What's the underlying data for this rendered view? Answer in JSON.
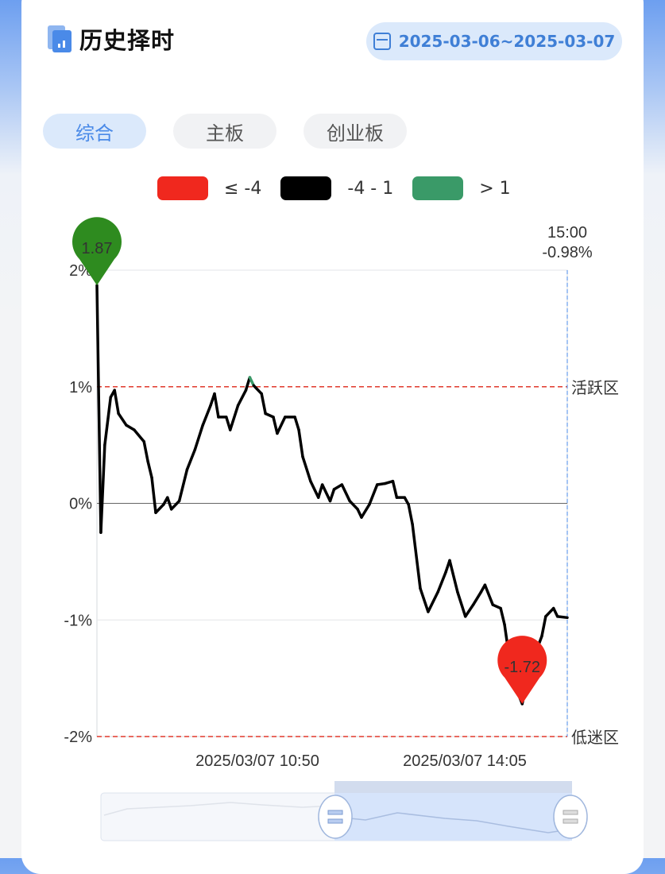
{
  "header": {
    "title": "历史择时",
    "date_range": "2025-03-06~2025-03-07"
  },
  "tabs": [
    {
      "label": "综合",
      "active": true
    },
    {
      "label": "主板",
      "active": false
    },
    {
      "label": "创业板",
      "active": false
    }
  ],
  "legend": [
    {
      "label": "≤ -4",
      "color": "#f0281e"
    },
    {
      "label": "-4 - 1",
      "color": "#000000"
    },
    {
      "label": "> 1",
      "color": "#3a9a68"
    }
  ],
  "chart_data": {
    "type": "line",
    "ylim": [
      -2,
      2
    ],
    "y_ticks": [
      "2%",
      "1%",
      "0%",
      "-1%",
      "-2%"
    ],
    "x_tick_labels": [
      "2025/03/07 10:50",
      "2025/03/07 14:05"
    ],
    "reference_lines": [
      {
        "value": 1,
        "label": "活跃区",
        "color": "#e0392b"
      },
      {
        "value": -2,
        "label": "低迷区",
        "color": "#e0392b"
      }
    ],
    "max_marker": {
      "label": "1.87",
      "time": "09:30",
      "value": 1.87,
      "color": "#2e8b1f"
    },
    "min_marker": {
      "label": "-1.72",
      "time": "14:37",
      "value": -1.72,
      "color": "#f0281e"
    },
    "cursor": {
      "time": "15:00",
      "value_label": "-0.98%"
    },
    "series": {
      "x": [
        "09:30",
        "09:32",
        "09:34",
        "09:37",
        "09:39",
        "09:41",
        "09:45",
        "09:49",
        "09:54",
        "09:56",
        "09:58",
        "10:00",
        "10:04",
        "10:06",
        "10:08",
        "10:12",
        "10:16",
        "10:20",
        "10:24",
        "10:28",
        "10:30",
        "10:32",
        "10:36",
        "10:38",
        "10:42",
        "10:46",
        "10:48",
        "10:50",
        "10:54",
        "10:56",
        "11:00",
        "11:02",
        "11:06",
        "11:11",
        "11:13",
        "11:15",
        "11:19",
        "11:23",
        "11:25",
        "11:29",
        "13:01",
        "13:05",
        "13:09",
        "13:13",
        "13:15",
        "13:19",
        "13:23",
        "13:27",
        "13:31",
        "13:33",
        "13:37",
        "13:39",
        "13:41",
        "13:45",
        "13:49",
        "13:54",
        "13:58",
        "14:00",
        "14:04",
        "14:08",
        "14:12",
        "14:16",
        "14:18",
        "14:22",
        "14:26",
        "14:28",
        "14:32",
        "14:37",
        "14:41",
        "14:47",
        "14:49",
        "14:53",
        "14:55",
        "15:00"
      ],
      "y": [
        1.87,
        -0.25,
        0.5,
        0.91,
        0.97,
        0.77,
        0.67,
        0.63,
        0.53,
        0.36,
        0.22,
        -0.08,
        -0.01,
        0.05,
        -0.05,
        0.02,
        0.29,
        0.46,
        0.67,
        0.84,
        0.94,
        0.74,
        0.74,
        0.63,
        0.84,
        0.97,
        1.08,
        1.01,
        0.94,
        0.77,
        0.74,
        0.6,
        0.74,
        0.74,
        0.63,
        0.4,
        0.19,
        0.05,
        0.16,
        0.02,
        0.12,
        0.16,
        0.02,
        -0.05,
        -0.12,
        -0.01,
        0.16,
        0.17,
        0.19,
        0.05,
        0.05,
        -0.01,
        -0.18,
        -0.73,
        -0.93,
        -0.76,
        -0.59,
        -0.49,
        -0.76,
        -0.97,
        -0.87,
        -0.76,
        -0.7,
        -0.87,
        -0.9,
        -1.04,
        -1.51,
        -1.72,
        -1.41,
        -1.14,
        -0.97,
        -0.9,
        -0.97,
        -0.98
      ]
    }
  }
}
